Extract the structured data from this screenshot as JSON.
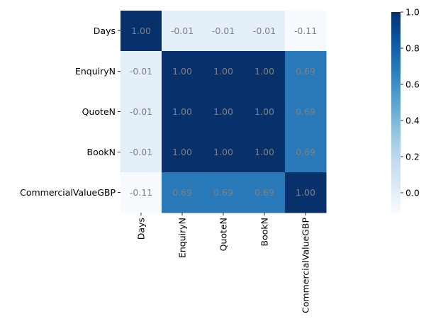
{
  "chart_data": {
    "type": "heatmap",
    "title": "",
    "xlabel": "",
    "ylabel": "",
    "rows": [
      "Days",
      "EnquiryN",
      "QuoteN",
      "BookN",
      "CommercialValueGBP"
    ],
    "cols": [
      "Days",
      "EnquiryN",
      "QuoteN",
      "BookN",
      "CommercialValueGBP"
    ],
    "values": [
      [
        1.0,
        -0.01,
        -0.01,
        -0.01,
        -0.11
      ],
      [
        -0.01,
        1.0,
        1.0,
        1.0,
        0.69
      ],
      [
        -0.01,
        1.0,
        1.0,
        1.0,
        0.69
      ],
      [
        -0.01,
        1.0,
        1.0,
        1.0,
        0.69
      ],
      [
        -0.11,
        0.69,
        0.69,
        0.69,
        1.0
      ]
    ],
    "annotation_format": "0.00",
    "colormap": "Blues",
    "colorbar": {
      "min": -0.11,
      "max": 1.0,
      "ticks": [
        0.0,
        0.2,
        0.4,
        0.6,
        0.8,
        1.0
      ],
      "tick_labels": [
        "0.0",
        "0.2",
        "0.4",
        "0.6",
        "0.8",
        "1.0"
      ]
    },
    "colors": {
      "annotation_text": "#808080",
      "tick_text": "#000000"
    }
  }
}
